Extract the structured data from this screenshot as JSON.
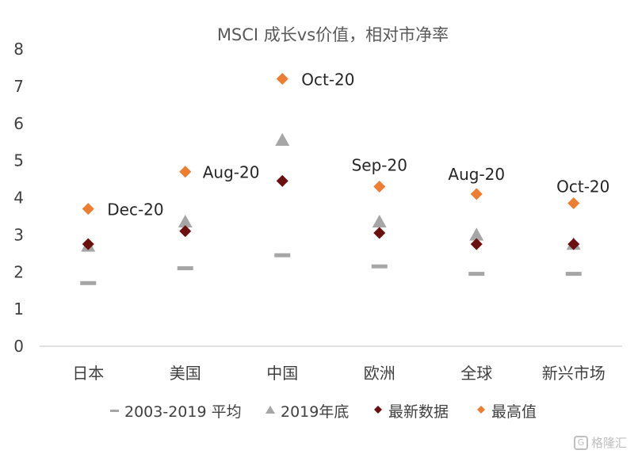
{
  "chart_data": {
    "type": "scatter",
    "title": "MSCI 成长vs价值，相对市净率",
    "categories": [
      "日本",
      "美国",
      "中国",
      "欧洲",
      "全球",
      "新兴市场"
    ],
    "ylim": [
      0,
      8
    ],
    "yticks": [
      "0",
      "1",
      "2",
      "3",
      "4",
      "5",
      "6",
      "7",
      "8"
    ],
    "grid": false,
    "legend_position": "bottom",
    "series": [
      {
        "name": "2003-2019 平均",
        "marker": "dash",
        "color": "#a6a6a6",
        "values": [
          1.7,
          2.1,
          2.45,
          2.15,
          1.95,
          1.95
        ]
      },
      {
        "name": "2019年底",
        "marker": "triangle",
        "color": "#a6a6a6",
        "values": [
          2.7,
          3.35,
          5.55,
          3.35,
          3.0,
          2.75
        ]
      },
      {
        "name": "最新数据",
        "marker": "diamond",
        "color": "#6b0f0f",
        "values": [
          2.75,
          3.1,
          4.45,
          3.05,
          2.75,
          2.75
        ]
      },
      {
        "name": "最高值",
        "marker": "diamond",
        "color": "#ed7d31",
        "values": [
          3.7,
          4.7,
          7.2,
          4.3,
          4.1,
          3.85
        ]
      }
    ],
    "annotations": [
      "Dec-20",
      "Aug-20",
      "Oct-20",
      "Sep-20",
      "Aug-20",
      "Oct-20"
    ]
  },
  "watermark": {
    "text": "格隆汇"
  }
}
